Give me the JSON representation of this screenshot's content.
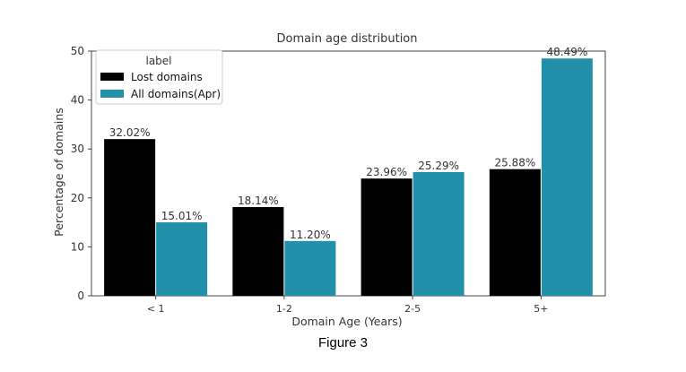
{
  "chart_data": {
    "type": "bar",
    "title": "Domain age distribution",
    "xlabel": "Domain Age (Years)",
    "ylabel": "Percentage of domains",
    "categories": [
      "< 1",
      "1-2",
      "2-5",
      "5+"
    ],
    "ylim": [
      0,
      50
    ],
    "yticks": [
      0,
      10,
      20,
      30,
      40,
      50
    ],
    "grid": false,
    "legend": {
      "title": "label",
      "placement": "top-left",
      "entries": [
        "Lost domains",
        "All domains(Apr)"
      ]
    },
    "series": [
      {
        "name": "Lost domains",
        "color": "#000000",
        "values": [
          32.02,
          18.14,
          23.96,
          25.88
        ],
        "labels": [
          "32.02%",
          "18.14%",
          "23.96%",
          "25.88%"
        ]
      },
      {
        "name": "All domains(Apr)",
        "color": "#2190a8",
        "values": [
          15.01,
          11.2,
          25.29,
          48.49
        ],
        "labels": [
          "15.01%",
          "11.20%",
          "25.29%",
          "48.49%"
        ]
      }
    ]
  },
  "caption": "Figure 3"
}
